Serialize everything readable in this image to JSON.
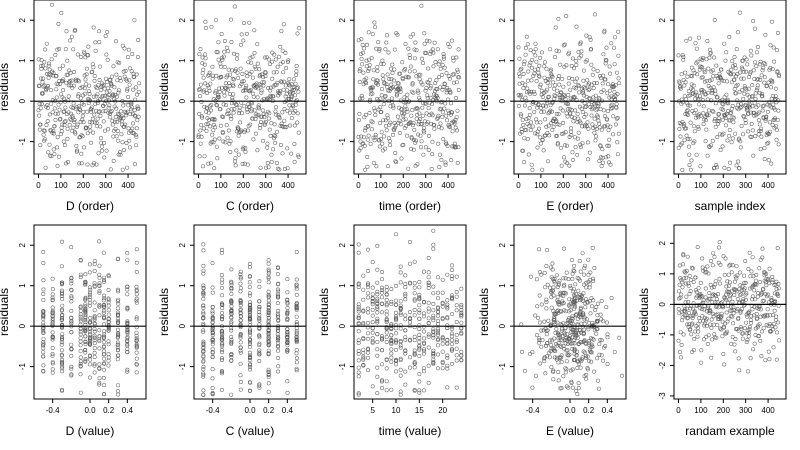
{
  "chart_data": [
    {
      "type": "scatter",
      "xlabel": "D (order)",
      "ylabel": "residuals",
      "xlim": [
        -20,
        480
      ],
      "ylim": [
        -1.8,
        2.5
      ],
      "xticks": [
        0,
        100,
        200,
        300,
        400
      ],
      "yticks": [
        -1,
        0,
        1,
        2
      ],
      "hline": 0,
      "n_points": 450,
      "x_pattern": "index",
      "seed": 11
    },
    {
      "type": "scatter",
      "xlabel": "C (order)",
      "ylabel": "residuals",
      "xlim": [
        -20,
        480
      ],
      "ylim": [
        -1.8,
        2.5
      ],
      "xticks": [
        0,
        100,
        200,
        300,
        400
      ],
      "yticks": [
        -1,
        0,
        1,
        2
      ],
      "hline": 0,
      "n_points": 450,
      "x_pattern": "index",
      "seed": 23
    },
    {
      "type": "scatter",
      "xlabel": "time (order)",
      "ylabel": "residuals",
      "xlim": [
        -20,
        480
      ],
      "ylim": [
        -1.8,
        2.5
      ],
      "xticks": [
        0,
        100,
        200,
        300,
        400
      ],
      "yticks": [
        -1,
        0,
        1,
        2
      ],
      "hline": 0,
      "n_points": 450,
      "x_pattern": "index",
      "seed": 37
    },
    {
      "type": "scatter",
      "xlabel": "E (order)",
      "ylabel": "residuals",
      "xlim": [
        -20,
        480
      ],
      "ylim": [
        -1.8,
        2.5
      ],
      "xticks": [
        0,
        100,
        200,
        300,
        400
      ],
      "yticks": [
        -1,
        0,
        1,
        2
      ],
      "hline": 0,
      "n_points": 450,
      "x_pattern": "index",
      "seed": 41
    },
    {
      "type": "scatter",
      "xlabel": "sample index",
      "ylabel": "residuals",
      "xlim": [
        -20,
        480
      ],
      "ylim": [
        -1.8,
        2.5
      ],
      "xticks": [
        0,
        100,
        200,
        300,
        400
      ],
      "yticks": [
        -1,
        0,
        1,
        2
      ],
      "hline": 0,
      "n_points": 450,
      "x_pattern": "index",
      "seed": 53
    },
    {
      "type": "scatter",
      "xlabel": "D (value)",
      "ylabel": "residuals",
      "xlim": [
        -0.6,
        0.6
      ],
      "ylim": [
        -1.8,
        2.5
      ],
      "xticks": [
        -0.4,
        0.0,
        0.2,
        0.4
      ],
      "xtick_labels": [
        "-0.4",
        "0.0",
        "0.2",
        "0.4"
      ],
      "yticks": [
        -1,
        0,
        1,
        2
      ],
      "hline": 0,
      "n_points": 450,
      "x_pattern": "levels",
      "x_levels": [
        -0.5,
        -0.4,
        -0.3,
        -0.2,
        -0.1,
        -0.05,
        0.0,
        0.05,
        0.1,
        0.15,
        0.2,
        0.3,
        0.4,
        0.5
      ],
      "seed": 61
    },
    {
      "type": "scatter",
      "xlabel": "C (value)",
      "ylabel": "residuals",
      "xlim": [
        -0.6,
        0.6
      ],
      "ylim": [
        -1.8,
        2.5
      ],
      "xticks": [
        -0.4,
        0.0,
        0.2,
        0.4
      ],
      "xtick_labels": [
        "-0.4",
        "0.0",
        "0.2",
        "0.4"
      ],
      "yticks": [
        -1,
        0,
        1,
        2
      ],
      "hline": 0,
      "n_points": 450,
      "x_pattern": "levels",
      "x_levels": [
        -0.5,
        -0.4,
        -0.3,
        -0.2,
        -0.1,
        0.0,
        0.1,
        0.2,
        0.3,
        0.4,
        0.5
      ],
      "seed": 71
    },
    {
      "type": "scatter",
      "xlabel": "time (value)",
      "ylabel": "residuals",
      "xlim": [
        1,
        25
      ],
      "ylim": [
        -1.8,
        2.5
      ],
      "xticks": [
        5,
        10,
        15,
        20
      ],
      "xtick_labels": [
        "5",
        "10",
        "15",
        "20"
      ],
      "yticks": [
        -1,
        0,
        1,
        2
      ],
      "hline": 0,
      "n_points": 450,
      "x_pattern": "levels",
      "x_levels": [
        2,
        3,
        4,
        5,
        6,
        7,
        8,
        9,
        10,
        11,
        12,
        13,
        14,
        15,
        16,
        17,
        18,
        19,
        20,
        21,
        22,
        23,
        24
      ],
      "seed": 83
    },
    {
      "type": "scatter",
      "xlabel": "E (value)",
      "ylabel": "residuals",
      "xlim": [
        -0.6,
        0.6
      ],
      "ylim": [
        -1.8,
        2.5
      ],
      "xticks": [
        -0.4,
        0.0,
        0.2,
        0.4
      ],
      "xtick_labels": [
        "-0.4",
        "0.0",
        "0.2",
        "0.4"
      ],
      "yticks": [
        -1,
        0,
        1,
        2
      ],
      "hline": 0,
      "n_points": 450,
      "x_pattern": "normal",
      "x_sd": 0.2,
      "seed": 97
    },
    {
      "type": "scatter",
      "xlabel": "randam example",
      "ylabel": "residuals",
      "xlim": [
        -20,
        480
      ],
      "ylim": [
        -3.1,
        2.6
      ],
      "xticks": [
        0,
        100,
        200,
        300,
        400
      ],
      "yticks": [
        -3,
        -2,
        -1,
        0,
        1,
        2
      ],
      "hline": 0,
      "n_points": 450,
      "x_pattern": "index",
      "seed": 101
    }
  ],
  "style": {
    "point_color": "#555555",
    "axis_color": "#000000"
  }
}
